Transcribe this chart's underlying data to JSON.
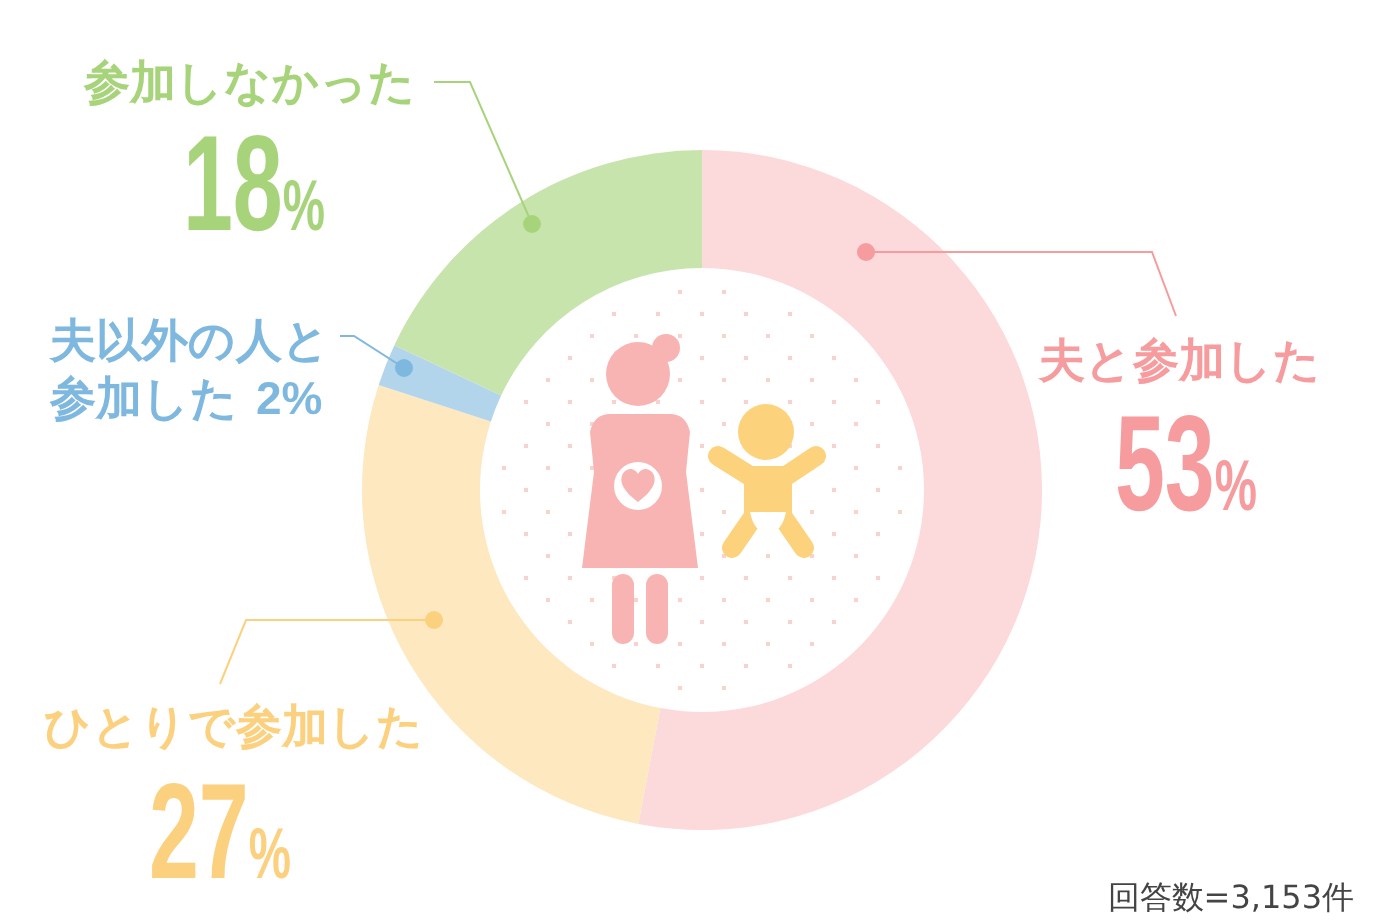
{
  "chart_data": {
    "type": "donut",
    "categories": [
      "夫と参加した",
      "ひとりで参加した",
      "夫以外の人と参加した",
      "参加しなかった"
    ],
    "values": [
      53,
      27,
      2,
      18
    ],
    "value_labels": [
      "53%",
      "27%",
      "2%",
      "18%"
    ],
    "colors": [
      "#fcd9da",
      "#fde8c0",
      "#b3d5ec",
      "#c8e4ad"
    ],
    "annotations": [
      "回答数=3,153件"
    ]
  }
}
